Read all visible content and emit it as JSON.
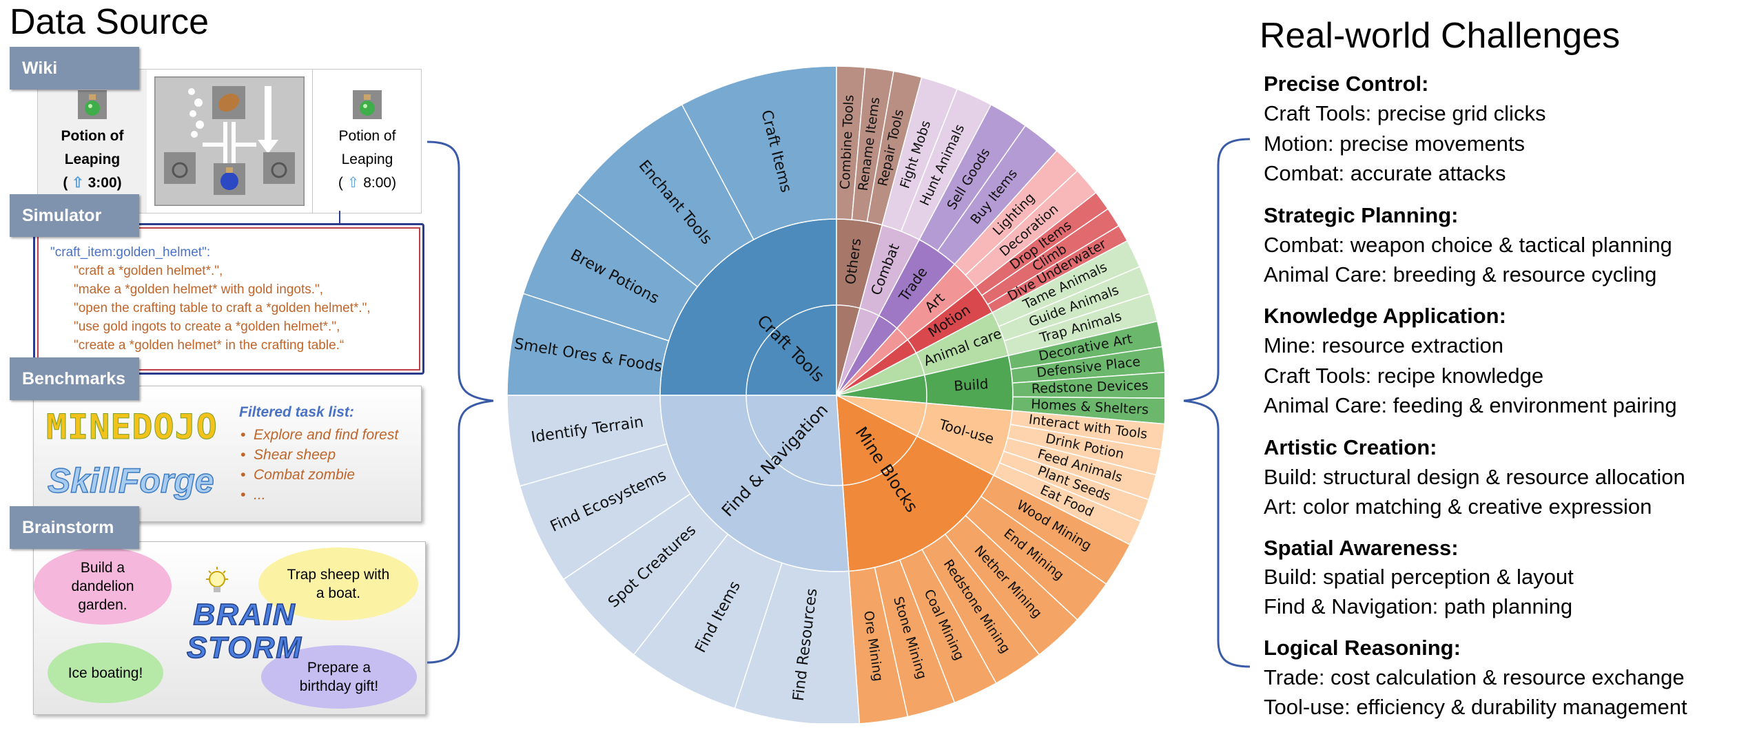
{
  "left": {
    "title": "Data Source",
    "tabs": [
      "Wiki",
      "Simulator",
      "Benchmarks",
      "Brainstorm"
    ],
    "wiki": {
      "left_name": "Potion of Leaping",
      "left_name_l1": "Potion of",
      "left_name_l2": "Leaping",
      "left_time": "3:00",
      "right_name_l1": "Potion of",
      "right_name_l2": "Leaping",
      "right_time": "8:00"
    },
    "simulator_lines": [
      "\"craft_item:golden_helmet\":",
      "\"craft a *golden helmet*.\",",
      "\"make a *golden helmet* with gold ingots.\",",
      "\"open the crafting table to craft a *golden helmet*.\",",
      "\"use gold ingots to create a *golden helmet*.\",",
      "\"create a *golden helmet* in the crafting table.“"
    ],
    "benchmarks": {
      "logo1": "MINEDOJO",
      "logo2": "SkillForge",
      "list_title": "Filtered task list:",
      "items": [
        "Explore and find forest",
        "Shear sheep",
        "Combat zombie",
        "..."
      ]
    },
    "brainstorm": {
      "center": [
        "BRAIN",
        "STORM"
      ],
      "clouds": [
        "Build a dandelion garden.",
        "Trap sheep with a boat.",
        "Ice boating!",
        "Prepare a birthday gift!"
      ]
    }
  },
  "chart_data": {
    "type": "sunburst",
    "inner": [
      {
        "label": "Craft Tools",
        "color": "#4d8bbd"
      },
      {
        "label": "Others",
        "color": "#a7776a"
      },
      {
        "label": "Combat",
        "color": "#d6b7da"
      },
      {
        "label": "Trade",
        "color": "#9e78c4"
      },
      {
        "label": "Art",
        "color": "#f29596"
      },
      {
        "label": "Motion",
        "color": "#d9484c"
      },
      {
        "label": "Animal care",
        "color": "#b4dea6"
      },
      {
        "label": "Build",
        "color": "#4fa653"
      },
      {
        "label": "Tool-use",
        "color": "#fdc592"
      },
      {
        "label": "Mine Blocks",
        "color": "#f08939"
      },
      {
        "label": "Find & Navigation",
        "color": "#b5cae4"
      }
    ],
    "outer": [
      {
        "label": "Craft Items",
        "parent": "Craft Tools"
      },
      {
        "label": "Enchant Tools",
        "parent": "Craft Tools"
      },
      {
        "label": "Brew Potions",
        "parent": "Craft Tools"
      },
      {
        "label": "Smelt Ores & Foods",
        "parent": "Craft Tools"
      },
      {
        "label": "Combine Tools",
        "parent": "Others"
      },
      {
        "label": "Rename Items",
        "parent": "Others"
      },
      {
        "label": "Repair Tools",
        "parent": "Others"
      },
      {
        "label": "Fight Mobs",
        "parent": "Combat"
      },
      {
        "label": "Hunt Animals",
        "parent": "Combat"
      },
      {
        "label": "Sell Goods",
        "parent": "Trade"
      },
      {
        "label": "Buy Items",
        "parent": "Trade"
      },
      {
        "label": "Lighting",
        "parent": "Art"
      },
      {
        "label": "Decoration",
        "parent": "Art"
      },
      {
        "label": "Drop Items",
        "parent": "Motion"
      },
      {
        "label": "Climb",
        "parent": "Motion"
      },
      {
        "label": "Dive Underwater",
        "parent": "Motion"
      },
      {
        "label": "Tame Animals",
        "parent": "Animal care"
      },
      {
        "label": "Guide Animals",
        "parent": "Animal care"
      },
      {
        "label": "Trap Animals",
        "parent": "Animal care"
      },
      {
        "label": "Decorative Art",
        "parent": "Build"
      },
      {
        "label": "Defensive Place",
        "parent": "Build"
      },
      {
        "label": "Redstone Devices",
        "parent": "Build"
      },
      {
        "label": "Homes & Shelters",
        "parent": "Build"
      },
      {
        "label": "Interact with Tools",
        "parent": "Tool-use"
      },
      {
        "label": "Drink Potion",
        "parent": "Tool-use"
      },
      {
        "label": "Feed Animals",
        "parent": "Tool-use"
      },
      {
        "label": "Plant Seeds",
        "parent": "Tool-use"
      },
      {
        "label": "Eat Food",
        "parent": "Tool-use"
      },
      {
        "label": "Wood Mining",
        "parent": "Mine Blocks"
      },
      {
        "label": "End Mining",
        "parent": "Mine Blocks"
      },
      {
        "label": "Nether Mining",
        "parent": "Mine Blocks"
      },
      {
        "label": "Redstone Mining",
        "parent": "Mine Blocks"
      },
      {
        "label": "Coal Mining",
        "parent": "Mine Blocks"
      },
      {
        "label": "Stone Mining",
        "parent": "Mine Blocks"
      },
      {
        "label": "Ore Mining",
        "parent": "Mine Blocks"
      },
      {
        "label": "Find Resources",
        "parent": "Find & Navigation"
      },
      {
        "label": "Find Items",
        "parent": "Find & Navigation"
      },
      {
        "label": "Spot Creatures",
        "parent": "Find & Navigation"
      },
      {
        "label": "Find Ecosystems",
        "parent": "Find & Navigation"
      },
      {
        "label": "Identify Terrain",
        "parent": "Find & Navigation"
      }
    ]
  },
  "right": {
    "title": "Real-world Challenges",
    "sections": [
      {
        "heading": "Precise Control:",
        "lines": [
          "Craft Tools: precise grid clicks",
          "Motion: precise movements",
          "Combat: accurate attacks"
        ]
      },
      {
        "heading": "Strategic Planning:",
        "lines": [
          "Combat: weapon choice & tactical planning",
          "Animal Care: breeding & resource cycling"
        ]
      },
      {
        "heading": "Knowledge Application:",
        "lines": [
          "Mine: resource extraction",
          "Craft Tools: recipe knowledge",
          "Animal Care: feeding & environment pairing"
        ]
      },
      {
        "heading": "Artistic Creation:",
        "lines": [
          "Build: structural design & resource allocation",
          "Art: color matching & creative expression"
        ]
      },
      {
        "heading": "Spatial Awareness:",
        "lines": [
          "Build: spatial perception & layout",
          "Find & Navigation: path planning"
        ]
      },
      {
        "heading": "Logical Reasoning:",
        "lines": [
          "Trade: cost calculation & resource exchange",
          "Tool-use: efficiency & durability management"
        ]
      }
    ]
  }
}
